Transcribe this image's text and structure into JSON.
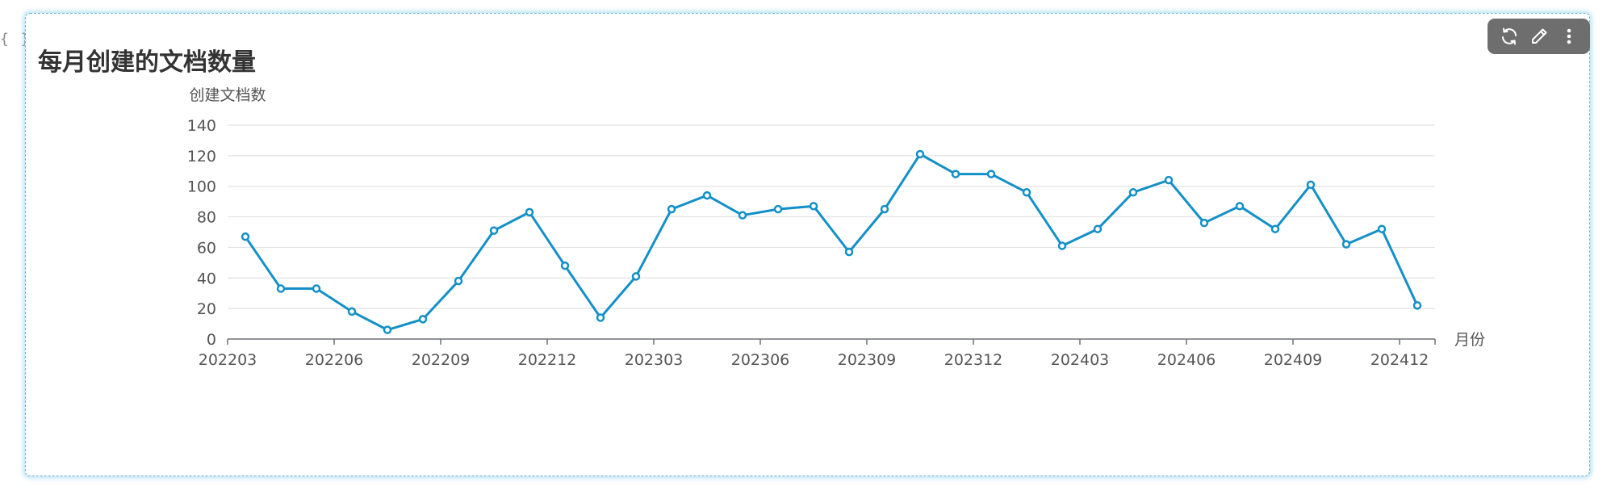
{
  "code_marker": "{ }",
  "chart_data": {
    "type": "line",
    "title": "每月创建的文档数量",
    "xlabel": "月份",
    "ylabel": "创建文档数",
    "ylim": [
      0,
      140
    ],
    "yticks": [
      0,
      20,
      40,
      60,
      80,
      100,
      120,
      140
    ],
    "grid": true,
    "x": [
      "202203",
      "202204",
      "202205",
      "202206",
      "202207",
      "202208",
      "202209",
      "202210",
      "202211",
      "202212",
      "202301",
      "202302",
      "202303",
      "202304",
      "202305",
      "202306",
      "202307",
      "202308",
      "202309",
      "202310",
      "202311",
      "202312",
      "202401",
      "202402",
      "202403",
      "202404",
      "202405",
      "202406",
      "202407",
      "202408",
      "202409",
      "202410",
      "202411",
      "202412"
    ],
    "xtick_labels": [
      "202203",
      "202206",
      "202209",
      "202212",
      "202303",
      "202306",
      "202309",
      "202312",
      "202403",
      "202406",
      "202409",
      "202412"
    ],
    "series": [
      {
        "color": "#1390c8",
        "values": [
          67,
          33,
          33,
          18,
          6,
          13,
          38,
          71,
          83,
          48,
          14,
          41,
          85,
          94,
          81,
          85,
          87,
          57,
          85,
          121,
          108,
          108,
          96,
          61,
          72,
          96,
          104,
          76,
          87,
          72,
          101,
          62,
          72,
          22
        ]
      }
    ]
  },
  "toolbar": {
    "icons": [
      "refresh-icon",
      "edit-pencil-icon",
      "more-vertical-icon"
    ]
  }
}
